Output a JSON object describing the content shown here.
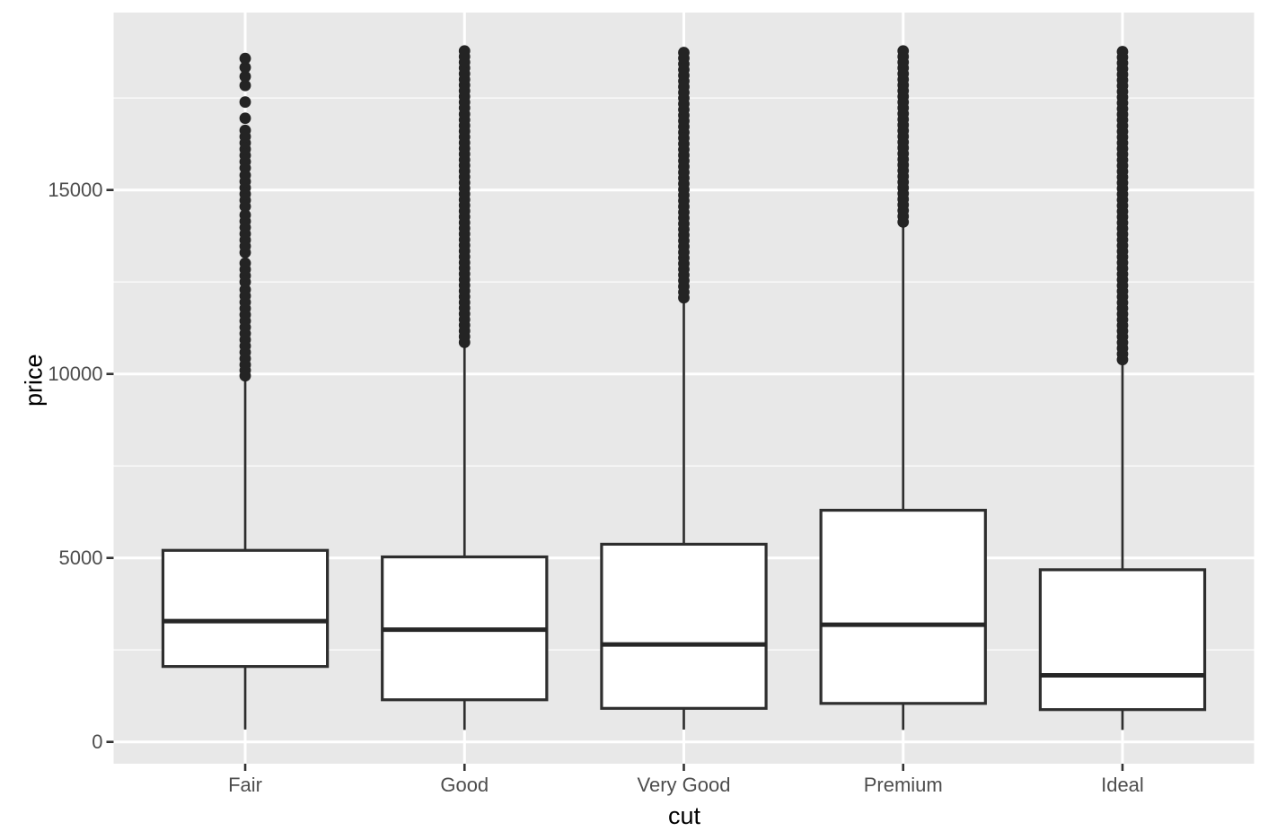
{
  "chart_data": {
    "type": "boxplot",
    "title": "",
    "xlabel": "cut",
    "ylabel": "price",
    "categories": [
      "Fair",
      "Good",
      "Very Good",
      "Premium",
      "Ideal"
    ],
    "y_ticks": [
      0,
      5000,
      10000,
      15000
    ],
    "y_tick_labels": [
      "0",
      "5000",
      "10000",
      "15000"
    ],
    "y_minor_ticks": [
      2500,
      7500,
      12500,
      17500
    ],
    "ylim": [
      -600,
      19750
    ],
    "grid": "major-and-minor",
    "legend": "none",
    "series": [
      {
        "category": "Fair",
        "lower_whisker": 337,
        "q1": 2050,
        "median": 3282,
        "q3": 5206,
        "upper_whisker": 9899,
        "outlier_min": 9950,
        "outlier_max": 18574,
        "outlier_bands": [
          [
            9950,
            10100,
            150
          ],
          [
            10250,
            12350,
            170
          ],
          [
            12500,
            13100,
            170
          ],
          [
            13300,
            14350,
            170
          ],
          [
            14550,
            15450,
            170
          ],
          [
            15600,
            16650,
            170
          ],
          [
            16950,
            17390,
            440
          ],
          [
            17840,
            18574,
            245
          ]
        ]
      },
      {
        "category": "Good",
        "lower_whisker": 327,
        "q1": 1145,
        "median": 3050,
        "q3": 5028,
        "upper_whisker": 10845,
        "outlier_min": 10858,
        "outlier_max": 18788,
        "outlier_bands": [
          [
            10860,
            17100,
            155
          ],
          [
            17230,
            18788,
            155
          ]
        ]
      },
      {
        "category": "Very Good",
        "lower_whisker": 336,
        "q1": 912,
        "median": 2648,
        "q3": 5373,
        "upper_whisker": 12057,
        "outlier_min": 12081,
        "outlier_max": 18818,
        "outlier_bands": [
          [
            12070,
            18818,
            155
          ]
        ]
      },
      {
        "category": "Premium",
        "lower_whisker": 326,
        "q1": 1046,
        "median": 3185,
        "q3": 6296,
        "upper_whisker": 14160,
        "outlier_min": 14180,
        "outlier_max": 18823,
        "outlier_bands": [
          [
            14130,
            18823,
            155
          ]
        ]
      },
      {
        "category": "Ideal",
        "lower_whisker": 326,
        "q1": 878,
        "median": 1810,
        "q3": 4679,
        "upper_whisker": 10372,
        "outlier_min": 10388,
        "outlier_max": 18806,
        "outlier_bands": [
          [
            10390,
            18806,
            155
          ]
        ]
      }
    ],
    "style": {
      "panel_bg": "#E8E8E8",
      "grid_major": "#FFFFFF",
      "grid_minor": "#FFFFFF",
      "box_fill": "#FFFFFF",
      "box_stroke": "#2E2E2E",
      "median_stroke": "#262626",
      "whisker_stroke": "#2E2E2E",
      "outlier_color": "#242424",
      "tick_mark_color": "#333333",
      "tick_label_color": "#4D4D4D",
      "axis_title_color": "#000000"
    }
  }
}
